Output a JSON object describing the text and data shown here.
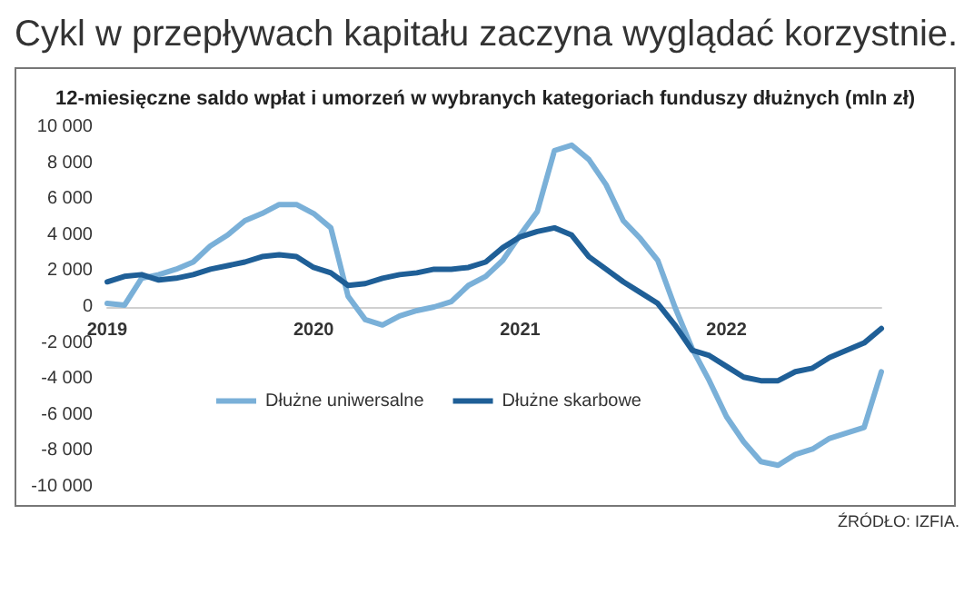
{
  "chart_data": {
    "type": "line",
    "title": "Cykl w przepływach kapitału zaczyna wyglądać korzystnie.",
    "subtitle": "12-miesięczne saldo wpłat i umorzeń w wybranych kategoriach funduszy dłużnych (mln zł)",
    "categories": [
      "2019",
      null,
      null,
      null,
      null,
      null,
      null,
      null,
      null,
      null,
      null,
      null,
      "2020",
      null,
      null,
      null,
      null,
      null,
      null,
      null,
      null,
      null,
      null,
      null,
      "2021",
      null,
      null,
      null,
      null,
      null,
      null,
      null,
      null,
      null,
      null,
      null,
      "2022",
      null,
      null,
      null,
      null,
      null,
      null,
      null,
      null,
      null
    ],
    "series": [
      {
        "name": "Dłużne uniwersalne",
        "color": "#7ab0d8",
        "values": [
          200,
          100,
          1600,
          1800,
          2100,
          2500,
          3400,
          4000,
          4800,
          5200,
          5700,
          5700,
          5200,
          4400,
          600,
          -700,
          -1000,
          -500,
          -200,
          0,
          300,
          1200,
          1700,
          2600,
          4000,
          5300,
          8700,
          9000,
          8200,
          6800,
          4800,
          3800,
          2600,
          0,
          -2300,
          -4100,
          -6100,
          -7500,
          -8600,
          -8800,
          -8200,
          -7900,
          -7300,
          -7000,
          -6700,
          -3600
        ]
      },
      {
        "name": "Dłużne skarbowe",
        "color": "#1f5f97",
        "values": [
          1400,
          1700,
          1800,
          1500,
          1600,
          1800,
          2100,
          2300,
          2500,
          2800,
          2900,
          2800,
          2200,
          1900,
          1200,
          1300,
          1600,
          1800,
          1900,
          2100,
          2100,
          2200,
          2500,
          3300,
          3900,
          4200,
          4400,
          4000,
          2800,
          2100,
          1400,
          800,
          200,
          -1000,
          -2400,
          -2700,
          -3300,
          -3900,
          -4100,
          -4100,
          -3600,
          -3400,
          -2800,
          -2400,
          -2000,
          -1200
        ]
      }
    ],
    "ylim": [
      -10000,
      10000
    ],
    "yticks": [
      {
        "value": -10000,
        "label": "-10 000"
      },
      {
        "value": -8000,
        "label": "-8 000"
      },
      {
        "value": -6000,
        "label": "-6 000"
      },
      {
        "value": -4000,
        "label": "-4 000"
      },
      {
        "value": -2000,
        "label": "-2 000"
      },
      0,
      {
        "value": 2000,
        "label": "2 000"
      },
      {
        "value": 4000,
        "label": "4 000"
      },
      {
        "value": 6000,
        "label": "6 000"
      },
      {
        "value": 8000,
        "label": "8 000"
      },
      {
        "value": 10000,
        "label": "10 000"
      }
    ],
    "grid": false,
    "legend": "bottom",
    "marker": "none",
    "line_style": "solid",
    "annotations": [
      "ŹRÓDŁO: IZFIA."
    ]
  }
}
